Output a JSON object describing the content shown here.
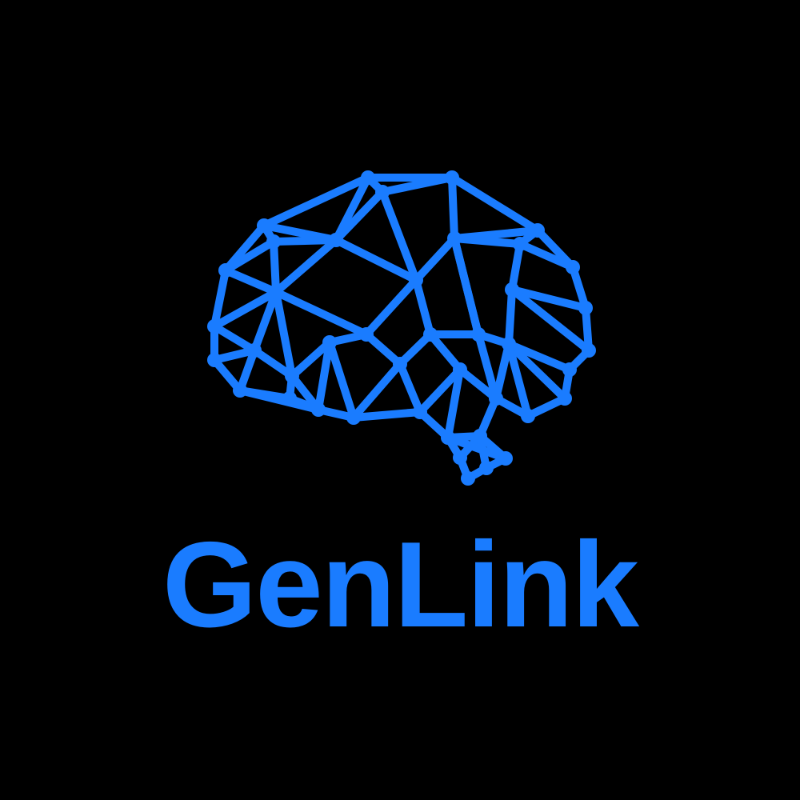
{
  "brand": {
    "name": "GenLink",
    "accent_color": "#1a7cff",
    "background_color": "#000000"
  },
  "logo": {
    "icon": "brain-network-icon"
  }
}
